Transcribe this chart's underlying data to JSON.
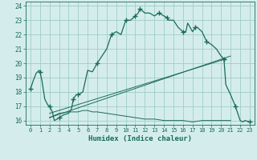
{
  "xlabel": "Humidex (Indice chaleur)",
  "bg_color": "#d4edec",
  "grid_color": "#a0ccca",
  "line_color": "#1a6b5a",
  "xlim": [
    -0.5,
    23.5
  ],
  "ylim": [
    15.7,
    24.3
  ],
  "yticks": [
    16,
    17,
    18,
    19,
    20,
    21,
    22,
    23,
    24
  ],
  "xticks": [
    0,
    1,
    2,
    3,
    4,
    5,
    6,
    7,
    8,
    9,
    10,
    11,
    12,
    13,
    14,
    15,
    16,
    17,
    18,
    19,
    20,
    21,
    22,
    23
  ],
  "main_curve_x": [
    0,
    0.3,
    0.6,
    0.9,
    1.0,
    1.2,
    1.5,
    1.8,
    2.0,
    2.3,
    2.5,
    2.8,
    3.0,
    3.5,
    4.0,
    4.3,
    4.5,
    4.8,
    5.0,
    5.5,
    6.0,
    6.5,
    7.0,
    7.5,
    8.0,
    8.5,
    9.0,
    9.5,
    10.0,
    10.5,
    11.0,
    11.3,
    11.5,
    12.0,
    12.5,
    13.0,
    13.5,
    14.0,
    14.3,
    14.5,
    15.0,
    15.5,
    16.0,
    16.3,
    16.5,
    17.0,
    17.3,
    17.5,
    18.0,
    18.5,
    19.0,
    19.5,
    20.0,
    20.3,
    20.5,
    21.0,
    21.5,
    22.0,
    22.3,
    22.5,
    23.0
  ],
  "main_curve_y": [
    18.2,
    18.8,
    19.3,
    19.5,
    19.4,
    18.8,
    17.5,
    17.1,
    17.0,
    16.6,
    16.0,
    16.1,
    16.2,
    16.4,
    16.5,
    16.8,
    17.5,
    17.8,
    17.8,
    18.0,
    19.5,
    19.4,
    20.0,
    20.5,
    21.0,
    22.0,
    22.2,
    22.0,
    23.0,
    23.0,
    23.3,
    23.5,
    23.8,
    23.5,
    23.5,
    23.3,
    23.5,
    23.3,
    23.2,
    23.0,
    23.0,
    22.5,
    22.2,
    22.2,
    22.8,
    22.2,
    22.5,
    22.5,
    22.2,
    21.5,
    21.3,
    21.0,
    20.5,
    20.3,
    18.5,
    17.8,
    17.0,
    16.0,
    15.9,
    16.0,
    15.9
  ],
  "marker_x": [
    0,
    1.0,
    2.0,
    3.0,
    4.5,
    5.0,
    7.0,
    8.5,
    10.0,
    11.0,
    11.5,
    13.5,
    14.3,
    16.0,
    17.3,
    18.5,
    20.3,
    21.5,
    23.0
  ],
  "marker_y": [
    18.2,
    19.4,
    17.0,
    16.2,
    17.5,
    17.8,
    20.0,
    22.0,
    23.0,
    23.3,
    23.8,
    23.5,
    23.2,
    22.2,
    22.5,
    21.5,
    20.3,
    17.0,
    15.9
  ],
  "second_curve_x": [
    2.0,
    3.0,
    4.0,
    5.0,
    5.5,
    6.0,
    6.5,
    7.0,
    8.0,
    9.0,
    10.0,
    11.0,
    12.0,
    13.0,
    14.0,
    15.0,
    16.0,
    17.0,
    18.0,
    19.0,
    20.0,
    20.5,
    21.0
  ],
  "second_curve_y": [
    16.2,
    16.5,
    16.6,
    16.6,
    16.7,
    16.7,
    16.6,
    16.6,
    16.5,
    16.4,
    16.3,
    16.2,
    16.1,
    16.1,
    16.0,
    16.0,
    16.0,
    15.9,
    16.0,
    16.0,
    16.0,
    16.0,
    16.0
  ],
  "line1_x": [
    2.0,
    21.0
  ],
  "line1_y": [
    16.2,
    20.5
  ],
  "line2_x": [
    2.0,
    20.5
  ],
  "line2_y": [
    16.5,
    20.3
  ]
}
